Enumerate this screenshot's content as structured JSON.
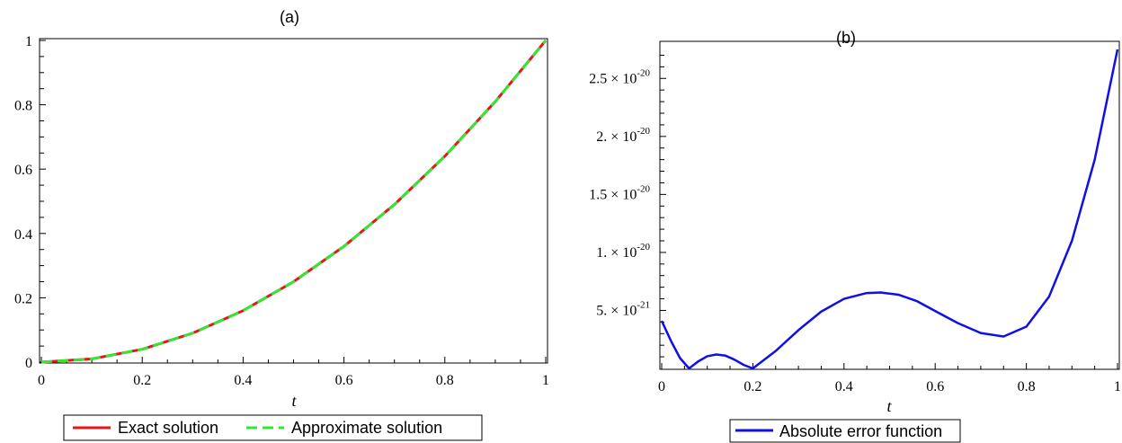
{
  "chart_data": [
    {
      "panel": "(a)",
      "type": "line",
      "title": "(a)",
      "xlabel": "t",
      "ylabel": "",
      "xlim": [
        0,
        1
      ],
      "ylim": [
        0,
        1
      ],
      "xticks": [
        "0",
        "0.2",
        "0.4",
        "0.6",
        "0.8",
        "1"
      ],
      "yticks": [
        "0",
        "0.2",
        "0.4",
        "0.6",
        "0.8",
        "1"
      ],
      "legend_position": "bottom",
      "series": [
        {
          "name": "Exact solution",
          "color": "#e8141e",
          "style": "solid",
          "x": [
            0,
            0.1,
            0.2,
            0.3,
            0.4,
            0.5,
            0.6,
            0.7,
            0.8,
            0.9,
            1.0
          ],
          "y": [
            0,
            0.01,
            0.04,
            0.09,
            0.16,
            0.25,
            0.36,
            0.49,
            0.64,
            0.81,
            1.0
          ]
        },
        {
          "name": "Approximate solution",
          "color": "#32e632",
          "style": "dashed",
          "x": [
            0,
            0.1,
            0.2,
            0.3,
            0.4,
            0.5,
            0.6,
            0.7,
            0.8,
            0.9,
            1.0
          ],
          "y": [
            0,
            0.01,
            0.04,
            0.09,
            0.16,
            0.25,
            0.36,
            0.49,
            0.64,
            0.81,
            1.0
          ]
        }
      ]
    },
    {
      "panel": "(b)",
      "type": "line",
      "title": "(b)",
      "xlabel": "t",
      "ylabel": "",
      "xlim": [
        0,
        1
      ],
      "ylim": [
        0,
        2.75e-20
      ],
      "xticks": [
        "0",
        "0.2",
        "0.4",
        "0.6",
        "0.8",
        "1"
      ],
      "yticks": [
        {
          "mantissa": "5.",
          "exponent": "-21"
        },
        {
          "mantissa": "1.",
          "exponent": "-20"
        },
        {
          "mantissa": "1.5",
          "exponent": "-20"
        },
        {
          "mantissa": "2.",
          "exponent": "-20"
        },
        {
          "mantissa": "2.5",
          "exponent": "-20"
        }
      ],
      "tick_times": "×",
      "tick_base": "10",
      "legend_position": "bottom",
      "series": [
        {
          "name": "Absolute error function",
          "color": "#1010e6",
          "style": "solid",
          "x": [
            0,
            0.02,
            0.04,
            0.06,
            0.08,
            0.1,
            0.12,
            0.14,
            0.16,
            0.18,
            0.2,
            0.25,
            0.3,
            0.35,
            0.4,
            0.45,
            0.48,
            0.52,
            0.56,
            0.6,
            0.65,
            0.7,
            0.75,
            0.8,
            0.85,
            0.9,
            0.95,
            1.0
          ],
          "y": [
            4.1e-21,
            2.4e-21,
            9e-22,
            0.0,
            6e-22,
            1.05e-21,
            1.2e-21,
            1.1e-21,
            7.5e-22,
            3e-22,
            0.0,
            1.5e-21,
            3.3e-21,
            4.9e-21,
            6e-21,
            6.5e-21,
            6.55e-21,
            6.35e-21,
            5.8e-21,
            4.95e-21,
            3.9e-21,
            3.05e-21,
            2.75e-21,
            3.6e-21,
            6.2e-21,
            1.1e-20,
            1.8e-20,
            2.75e-20
          ]
        }
      ]
    }
  ]
}
